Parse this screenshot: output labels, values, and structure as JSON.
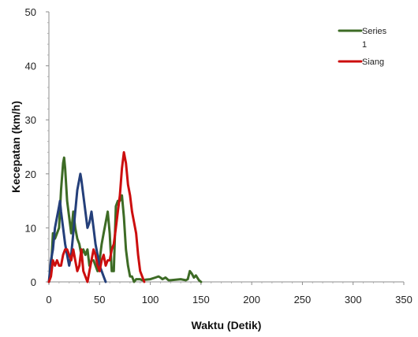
{
  "chart_data": {
    "type": "line",
    "xlabel": "Waktu (Detik)",
    "ylabel": "Kecepatan (km/h)",
    "xlim": [
      0,
      350
    ],
    "ylim": [
      0,
      50
    ],
    "x_ticks": [
      0,
      50,
      100,
      150,
      200,
      250,
      300,
      350
    ],
    "y_ticks": [
      0,
      10,
      20,
      30,
      40,
      50
    ],
    "grid": false,
    "legend_position": "top-right",
    "series": [
      {
        "name": "Series 1",
        "legend_lines": [
          "Series",
          "1"
        ],
        "color": "#3d6b25",
        "points": [
          [
            0,
            0
          ],
          [
            2,
            2
          ],
          [
            4,
            9
          ],
          [
            6,
            8
          ],
          [
            8,
            9
          ],
          [
            10,
            10
          ],
          [
            12,
            17
          ],
          [
            14,
            22
          ],
          [
            15,
            23
          ],
          [
            16,
            21
          ],
          [
            18,
            15
          ],
          [
            20,
            12
          ],
          [
            22,
            9
          ],
          [
            24,
            13
          ],
          [
            26,
            10
          ],
          [
            28,
            8
          ],
          [
            30,
            7
          ],
          [
            32,
            5
          ],
          [
            34,
            6
          ],
          [
            36,
            5
          ],
          [
            38,
            6
          ],
          [
            40,
            3
          ],
          [
            42,
            4
          ],
          [
            44,
            4
          ],
          [
            46,
            3
          ],
          [
            48,
            2
          ],
          [
            50,
            4
          ],
          [
            52,
            7
          ],
          [
            54,
            9
          ],
          [
            56,
            11
          ],
          [
            58,
            13
          ],
          [
            60,
            9
          ],
          [
            62,
            2
          ],
          [
            64,
            2
          ],
          [
            66,
            14
          ],
          [
            68,
            15
          ],
          [
            70,
            15
          ],
          [
            72,
            16
          ],
          [
            74,
            12
          ],
          [
            76,
            6
          ],
          [
            78,
            3
          ],
          [
            80,
            1
          ],
          [
            82,
            1
          ],
          [
            84,
            0
          ],
          [
            86,
            0.5
          ],
          [
            88,
            0.5
          ],
          [
            90,
            0.5
          ],
          [
            92,
            0.3
          ],
          [
            95,
            0.4
          ],
          [
            100,
            0.5
          ],
          [
            105,
            0.8
          ],
          [
            108,
            1
          ],
          [
            110,
            0.8
          ],
          [
            112,
            0.5
          ],
          [
            115,
            0.8
          ],
          [
            118,
            0.3
          ],
          [
            120,
            0.3
          ],
          [
            125,
            0.4
          ],
          [
            130,
            0.5
          ],
          [
            135,
            0.3
          ],
          [
            137,
            0.5
          ],
          [
            139,
            2
          ],
          [
            141,
            1.5
          ],
          [
            143,
            0.8
          ],
          [
            145,
            1.2
          ],
          [
            148,
            0.3
          ],
          [
            150,
            0
          ]
        ]
      },
      {
        "name": "",
        "legend_lines": [],
        "color": "#243f7a",
        "points": [
          [
            0,
            0
          ],
          [
            2,
            4
          ],
          [
            4,
            6
          ],
          [
            6,
            10
          ],
          [
            8,
            12
          ],
          [
            10,
            14
          ],
          [
            11,
            15
          ],
          [
            12,
            13
          ],
          [
            14,
            10
          ],
          [
            16,
            7
          ],
          [
            18,
            5
          ],
          [
            20,
            3
          ],
          [
            22,
            5
          ],
          [
            24,
            9
          ],
          [
            26,
            13
          ],
          [
            28,
            17
          ],
          [
            30,
            19
          ],
          [
            31,
            20
          ],
          [
            32,
            19
          ],
          [
            34,
            16
          ],
          [
            36,
            13
          ],
          [
            38,
            10
          ],
          [
            40,
            11
          ],
          [
            42,
            13
          ],
          [
            44,
            10
          ],
          [
            46,
            7
          ],
          [
            48,
            5
          ],
          [
            50,
            3
          ],
          [
            52,
            2
          ],
          [
            54,
            1
          ],
          [
            56,
            0
          ]
        ]
      },
      {
        "name": "Siang",
        "legend_lines": [
          "Siang"
        ],
        "color": "#cc0e0e",
        "points": [
          [
            0,
            0
          ],
          [
            2,
            1
          ],
          [
            4,
            4
          ],
          [
            6,
            3
          ],
          [
            8,
            4
          ],
          [
            10,
            3
          ],
          [
            12,
            3
          ],
          [
            14,
            5
          ],
          [
            16,
            6
          ],
          [
            18,
            6
          ],
          [
            20,
            5
          ],
          [
            22,
            4
          ],
          [
            24,
            6
          ],
          [
            26,
            4
          ],
          [
            28,
            2
          ],
          [
            30,
            3
          ],
          [
            32,
            6
          ],
          [
            34,
            2
          ],
          [
            36,
            1
          ],
          [
            38,
            0
          ],
          [
            40,
            2
          ],
          [
            42,
            4
          ],
          [
            44,
            6
          ],
          [
            46,
            5
          ],
          [
            48,
            3
          ],
          [
            50,
            2
          ],
          [
            52,
            4
          ],
          [
            54,
            5
          ],
          [
            56,
            3
          ],
          [
            58,
            4
          ],
          [
            60,
            4
          ],
          [
            62,
            6
          ],
          [
            64,
            7
          ],
          [
            66,
            10
          ],
          [
            68,
            13
          ],
          [
            70,
            16
          ],
          [
            72,
            21
          ],
          [
            74,
            24
          ],
          [
            76,
            22
          ],
          [
            78,
            18
          ],
          [
            80,
            16
          ],
          [
            82,
            13
          ],
          [
            84,
            11
          ],
          [
            86,
            9
          ],
          [
            88,
            5
          ],
          [
            90,
            2
          ],
          [
            92,
            1
          ],
          [
            94,
            0
          ]
        ]
      }
    ]
  }
}
